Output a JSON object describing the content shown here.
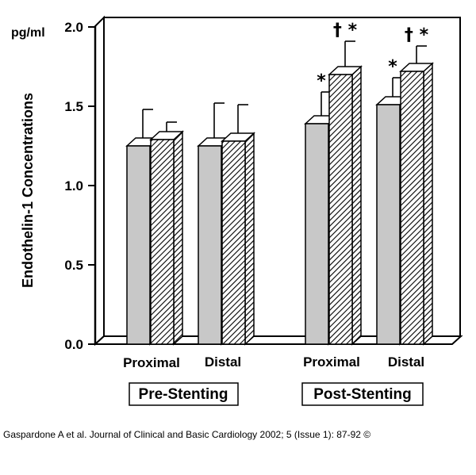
{
  "chart_data": {
    "type": "bar",
    "title": "",
    "ylabel": "Endothelin-1 Concentrations",
    "yunit": "pg/ml",
    "ylim": [
      0,
      2.0
    ],
    "yticks": [
      "0.0",
      "0.5",
      "1.0",
      "1.5",
      "2.0"
    ],
    "grid": false,
    "style": "3d-grouped-bars",
    "colors": {
      "solid": "#c8c8c8",
      "hatched": "#ffffff",
      "outline": "#000000"
    },
    "groups": [
      {
        "label": "Pre-Stenting",
        "categories": [
          {
            "label": "Proximal",
            "bars": [
              {
                "fill": "solid",
                "value": 1.25,
                "error": 0.23,
                "marker": ""
              },
              {
                "fill": "hatched",
                "value": 1.29,
                "error": 0.11,
                "marker": ""
              }
            ]
          },
          {
            "label": "Distal",
            "bars": [
              {
                "fill": "solid",
                "value": 1.25,
                "error": 0.27,
                "marker": ""
              },
              {
                "fill": "hatched",
                "value": 1.28,
                "error": 0.23,
                "marker": ""
              }
            ]
          }
        ]
      },
      {
        "label": "Post-Stenting",
        "categories": [
          {
            "label": "Proximal",
            "bars": [
              {
                "fill": "solid",
                "value": 1.39,
                "error": 0.2,
                "marker": "*"
              },
              {
                "fill": "hatched",
                "value": 1.7,
                "error": 0.21,
                "marker": "† *"
              }
            ]
          },
          {
            "label": "Distal",
            "bars": [
              {
                "fill": "solid",
                "value": 1.51,
                "error": 0.17,
                "marker": "*"
              },
              {
                "fill": "hatched",
                "value": 1.72,
                "error": 0.16,
                "marker": "† *"
              }
            ]
          }
        ]
      }
    ]
  },
  "caption": "Gaspardone A et al. Journal of Clinical and Basic Cardiology 2002; 5 (Issue 1): 87-92 ©"
}
